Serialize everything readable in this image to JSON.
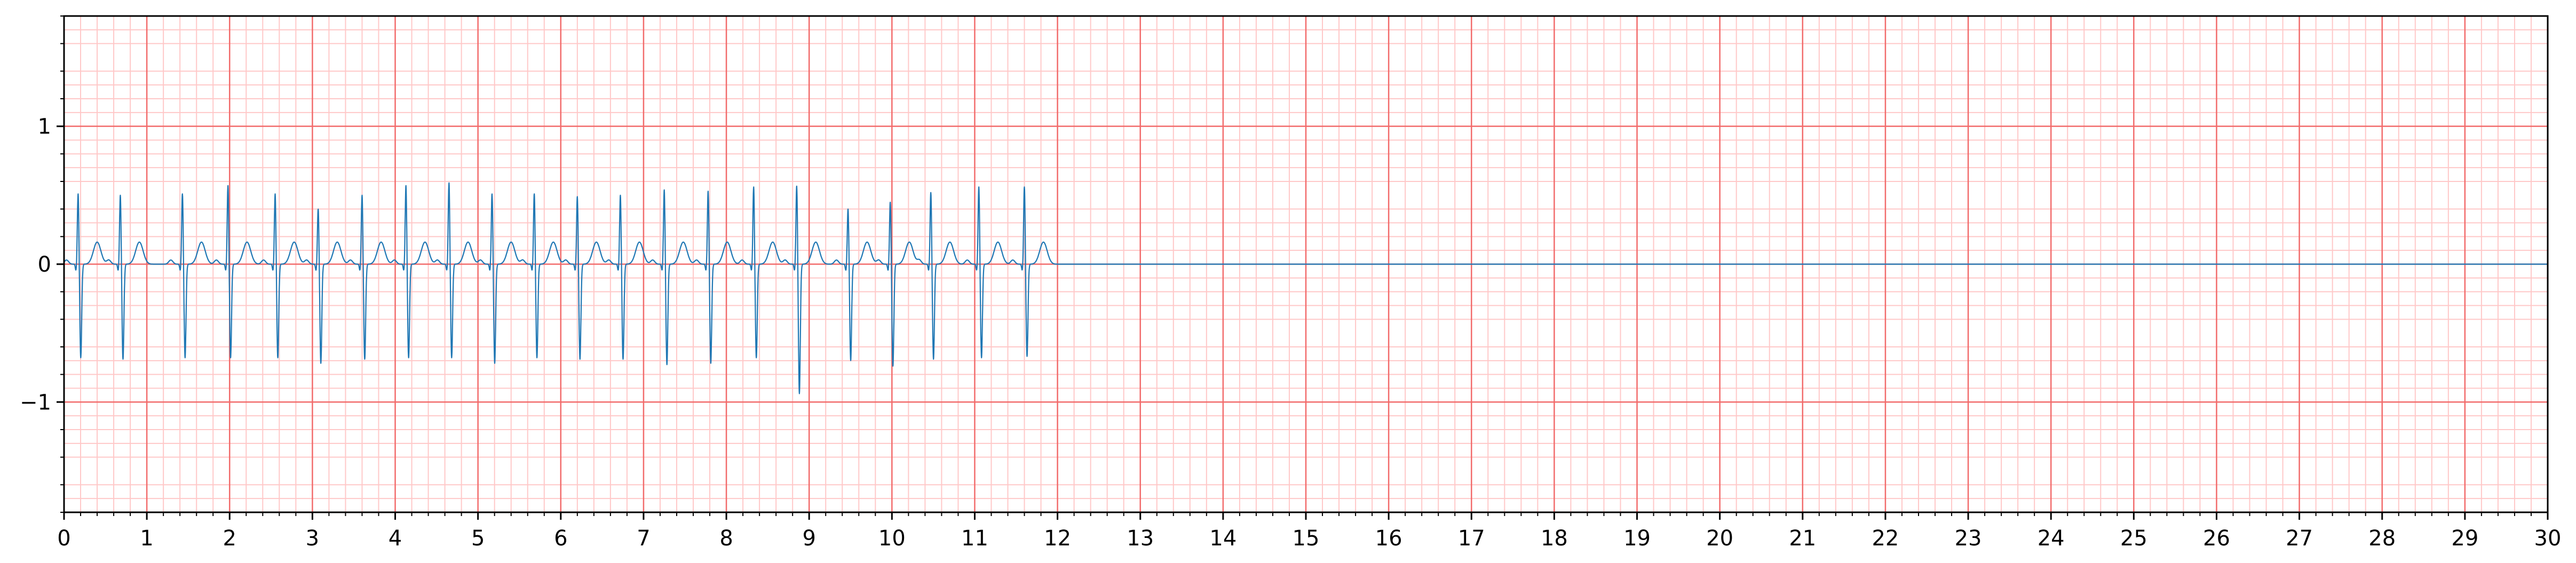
{
  "chart_data": {
    "type": "line",
    "title": "",
    "xlabel": "",
    "ylabel": "",
    "xlim": [
      0,
      30
    ],
    "ylim": [
      -1.8,
      1.8
    ],
    "grid": true,
    "x_ticks": [
      "0",
      "1",
      "2",
      "3",
      "4",
      "5",
      "6",
      "7",
      "8",
      "9",
      "10",
      "11",
      "12",
      "13",
      "14",
      "15",
      "16",
      "17",
      "18",
      "19",
      "20",
      "21",
      "22",
      "23",
      "24",
      "25",
      "26",
      "27",
      "28",
      "29",
      "30"
    ],
    "y_ticks": [
      {
        "value": 1,
        "label": "1"
      },
      {
        "value": 0,
        "label": "0"
      },
      {
        "value": -1,
        "label": "−1"
      }
    ],
    "series": [
      {
        "color": "#1f77b4",
        "signal_end": 12.0,
        "beats": [
          {
            "t": 0.17,
            "r": 0.52,
            "s": -0.68
          },
          {
            "t": 0.68,
            "r": 0.51,
            "s": -0.69
          },
          {
            "t": 1.43,
            "r": 0.52,
            "s": -0.68
          },
          {
            "t": 1.98,
            "r": 0.58,
            "s": -0.68
          },
          {
            "t": 2.55,
            "r": 0.52,
            "s": -0.68
          },
          {
            "t": 3.07,
            "r": 0.41,
            "s": -0.72
          },
          {
            "t": 3.6,
            "r": 0.51,
            "s": -0.69
          },
          {
            "t": 4.13,
            "r": 0.58,
            "s": -0.68
          },
          {
            "t": 4.65,
            "r": 0.6,
            "s": -0.68
          },
          {
            "t": 5.17,
            "r": 0.52,
            "s": -0.72
          },
          {
            "t": 5.68,
            "r": 0.52,
            "s": -0.68
          },
          {
            "t": 6.2,
            "r": 0.5,
            "s": -0.69
          },
          {
            "t": 6.72,
            "r": 0.51,
            "s": -0.69
          },
          {
            "t": 7.25,
            "r": 0.55,
            "s": -0.73
          },
          {
            "t": 7.78,
            "r": 0.54,
            "s": -0.72
          },
          {
            "t": 8.33,
            "r": 0.57,
            "s": -0.68
          },
          {
            "t": 8.85,
            "r": 0.58,
            "s": -0.94
          },
          {
            "t": 9.47,
            "r": 0.41,
            "s": -0.7
          },
          {
            "t": 9.98,
            "r": 0.46,
            "s": -0.74
          },
          {
            "t": 10.47,
            "r": 0.53,
            "s": -0.69
          },
          {
            "t": 11.05,
            "r": 0.57,
            "s": -0.68
          },
          {
            "t": 11.6,
            "r": 0.57,
            "s": -0.67
          }
        ]
      }
    ]
  }
}
